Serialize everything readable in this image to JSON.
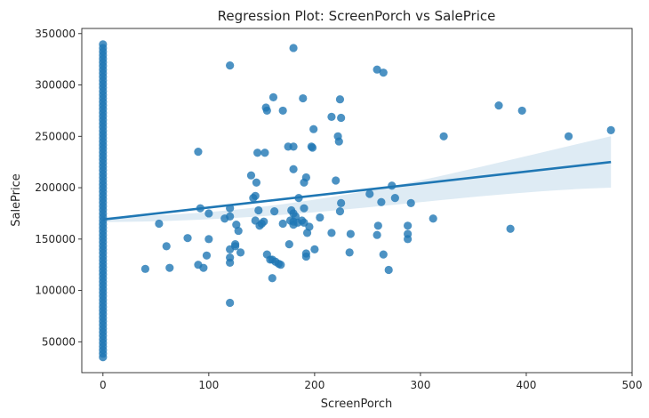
{
  "chart_data": {
    "type": "scatter",
    "title": "Regression Plot: ScreenPorch vs SalePrice",
    "xlabel": "ScreenPorch",
    "ylabel": "SalePrice",
    "xlim": [
      -20,
      500
    ],
    "ylim": [
      20000,
      355000
    ],
    "xticks": [
      0,
      100,
      200,
      300,
      400,
      500
    ],
    "yticks": [
      50000,
      100000,
      150000,
      200000,
      250000,
      300000,
      350000
    ],
    "grid": false,
    "point_color": "#1f77b4",
    "band_color": "#1f77b4",
    "regression": {
      "x": [
        0,
        480
      ],
      "y": [
        169000,
        225000
      ],
      "ci_lower": [
        166500,
        200000
      ],
      "ci_upper": [
        171500,
        250000
      ]
    },
    "points_at_zero_range": [
      35000,
      340000
    ],
    "points": [
      [
        40,
        121000
      ],
      [
        53,
        165000
      ],
      [
        60,
        143000
      ],
      [
        63,
        122000
      ],
      [
        80,
        151000
      ],
      [
        90,
        235000
      ],
      [
        90,
        125000
      ],
      [
        92,
        180000
      ],
      [
        95,
        122000
      ],
      [
        98,
        134000
      ],
      [
        100,
        175000
      ],
      [
        100,
        150000
      ],
      [
        115,
        170000
      ],
      [
        120,
        88000
      ],
      [
        120,
        319000
      ],
      [
        120,
        180000
      ],
      [
        120,
        172000
      ],
      [
        120,
        140000
      ],
      [
        120,
        132000
      ],
      [
        120,
        127000
      ],
      [
        125,
        143000
      ],
      [
        125,
        145000
      ],
      [
        126,
        164000
      ],
      [
        128,
        158000
      ],
      [
        130,
        137000
      ],
      [
        140,
        212000
      ],
      [
        142,
        190000
      ],
      [
        144,
        168000
      ],
      [
        144,
        192000
      ],
      [
        145,
        205000
      ],
      [
        146,
        234000
      ],
      [
        147,
        178000
      ],
      [
        148,
        163000
      ],
      [
        150,
        165000
      ],
      [
        152,
        167000
      ],
      [
        153,
        234000
      ],
      [
        154,
        278000
      ],
      [
        155,
        275000
      ],
      [
        155,
        135000
      ],
      [
        158,
        130000
      ],
      [
        160,
        112000
      ],
      [
        160,
        130000
      ],
      [
        161,
        288000
      ],
      [
        162,
        177000
      ],
      [
        163,
        128000
      ],
      [
        166,
        126000
      ],
      [
        168,
        125000
      ],
      [
        170,
        275000
      ],
      [
        170,
        165000
      ],
      [
        175,
        240000
      ],
      [
        176,
        145000
      ],
      [
        177,
        168000
      ],
      [
        178,
        178000
      ],
      [
        180,
        336000
      ],
      [
        180,
        240000
      ],
      [
        180,
        218000
      ],
      [
        180,
        175000
      ],
      [
        180,
        167000
      ],
      [
        180,
        164000
      ],
      [
        182,
        172000
      ],
      [
        184,
        166000
      ],
      [
        185,
        190000
      ],
      [
        188,
        168000
      ],
      [
        189,
        287000
      ],
      [
        190,
        205000
      ],
      [
        190,
        180000
      ],
      [
        190,
        166000
      ],
      [
        192,
        136000
      ],
      [
        192,
        133000
      ],
      [
        192,
        210000
      ],
      [
        193,
        156000
      ],
      [
        195,
        162000
      ],
      [
        197,
        240000
      ],
      [
        198,
        239000
      ],
      [
        199,
        257000
      ],
      [
        200,
        140000
      ],
      [
        205,
        171000
      ],
      [
        216,
        269000
      ],
      [
        216,
        156000
      ],
      [
        220,
        207000
      ],
      [
        222,
        250000
      ],
      [
        223,
        245000
      ],
      [
        224,
        177000
      ],
      [
        224,
        286000
      ],
      [
        225,
        268000
      ],
      [
        225,
        185000
      ],
      [
        233,
        137000
      ],
      [
        234,
        155000
      ],
      [
        252,
        194000
      ],
      [
        259,
        315000
      ],
      [
        259,
        154000
      ],
      [
        260,
        163000
      ],
      [
        263,
        186000
      ],
      [
        265,
        135000
      ],
      [
        265,
        312000
      ],
      [
        270,
        120000
      ],
      [
        273,
        202000
      ],
      [
        276,
        190000
      ],
      [
        288,
        163000
      ],
      [
        288,
        155000
      ],
      [
        288,
        150000
      ],
      [
        291,
        185000
      ],
      [
        312,
        170000
      ],
      [
        322,
        250000
      ],
      [
        374,
        280000
      ],
      [
        385,
        160000
      ],
      [
        396,
        275000
      ],
      [
        440,
        250000
      ],
      [
        480,
        256000
      ]
    ]
  }
}
